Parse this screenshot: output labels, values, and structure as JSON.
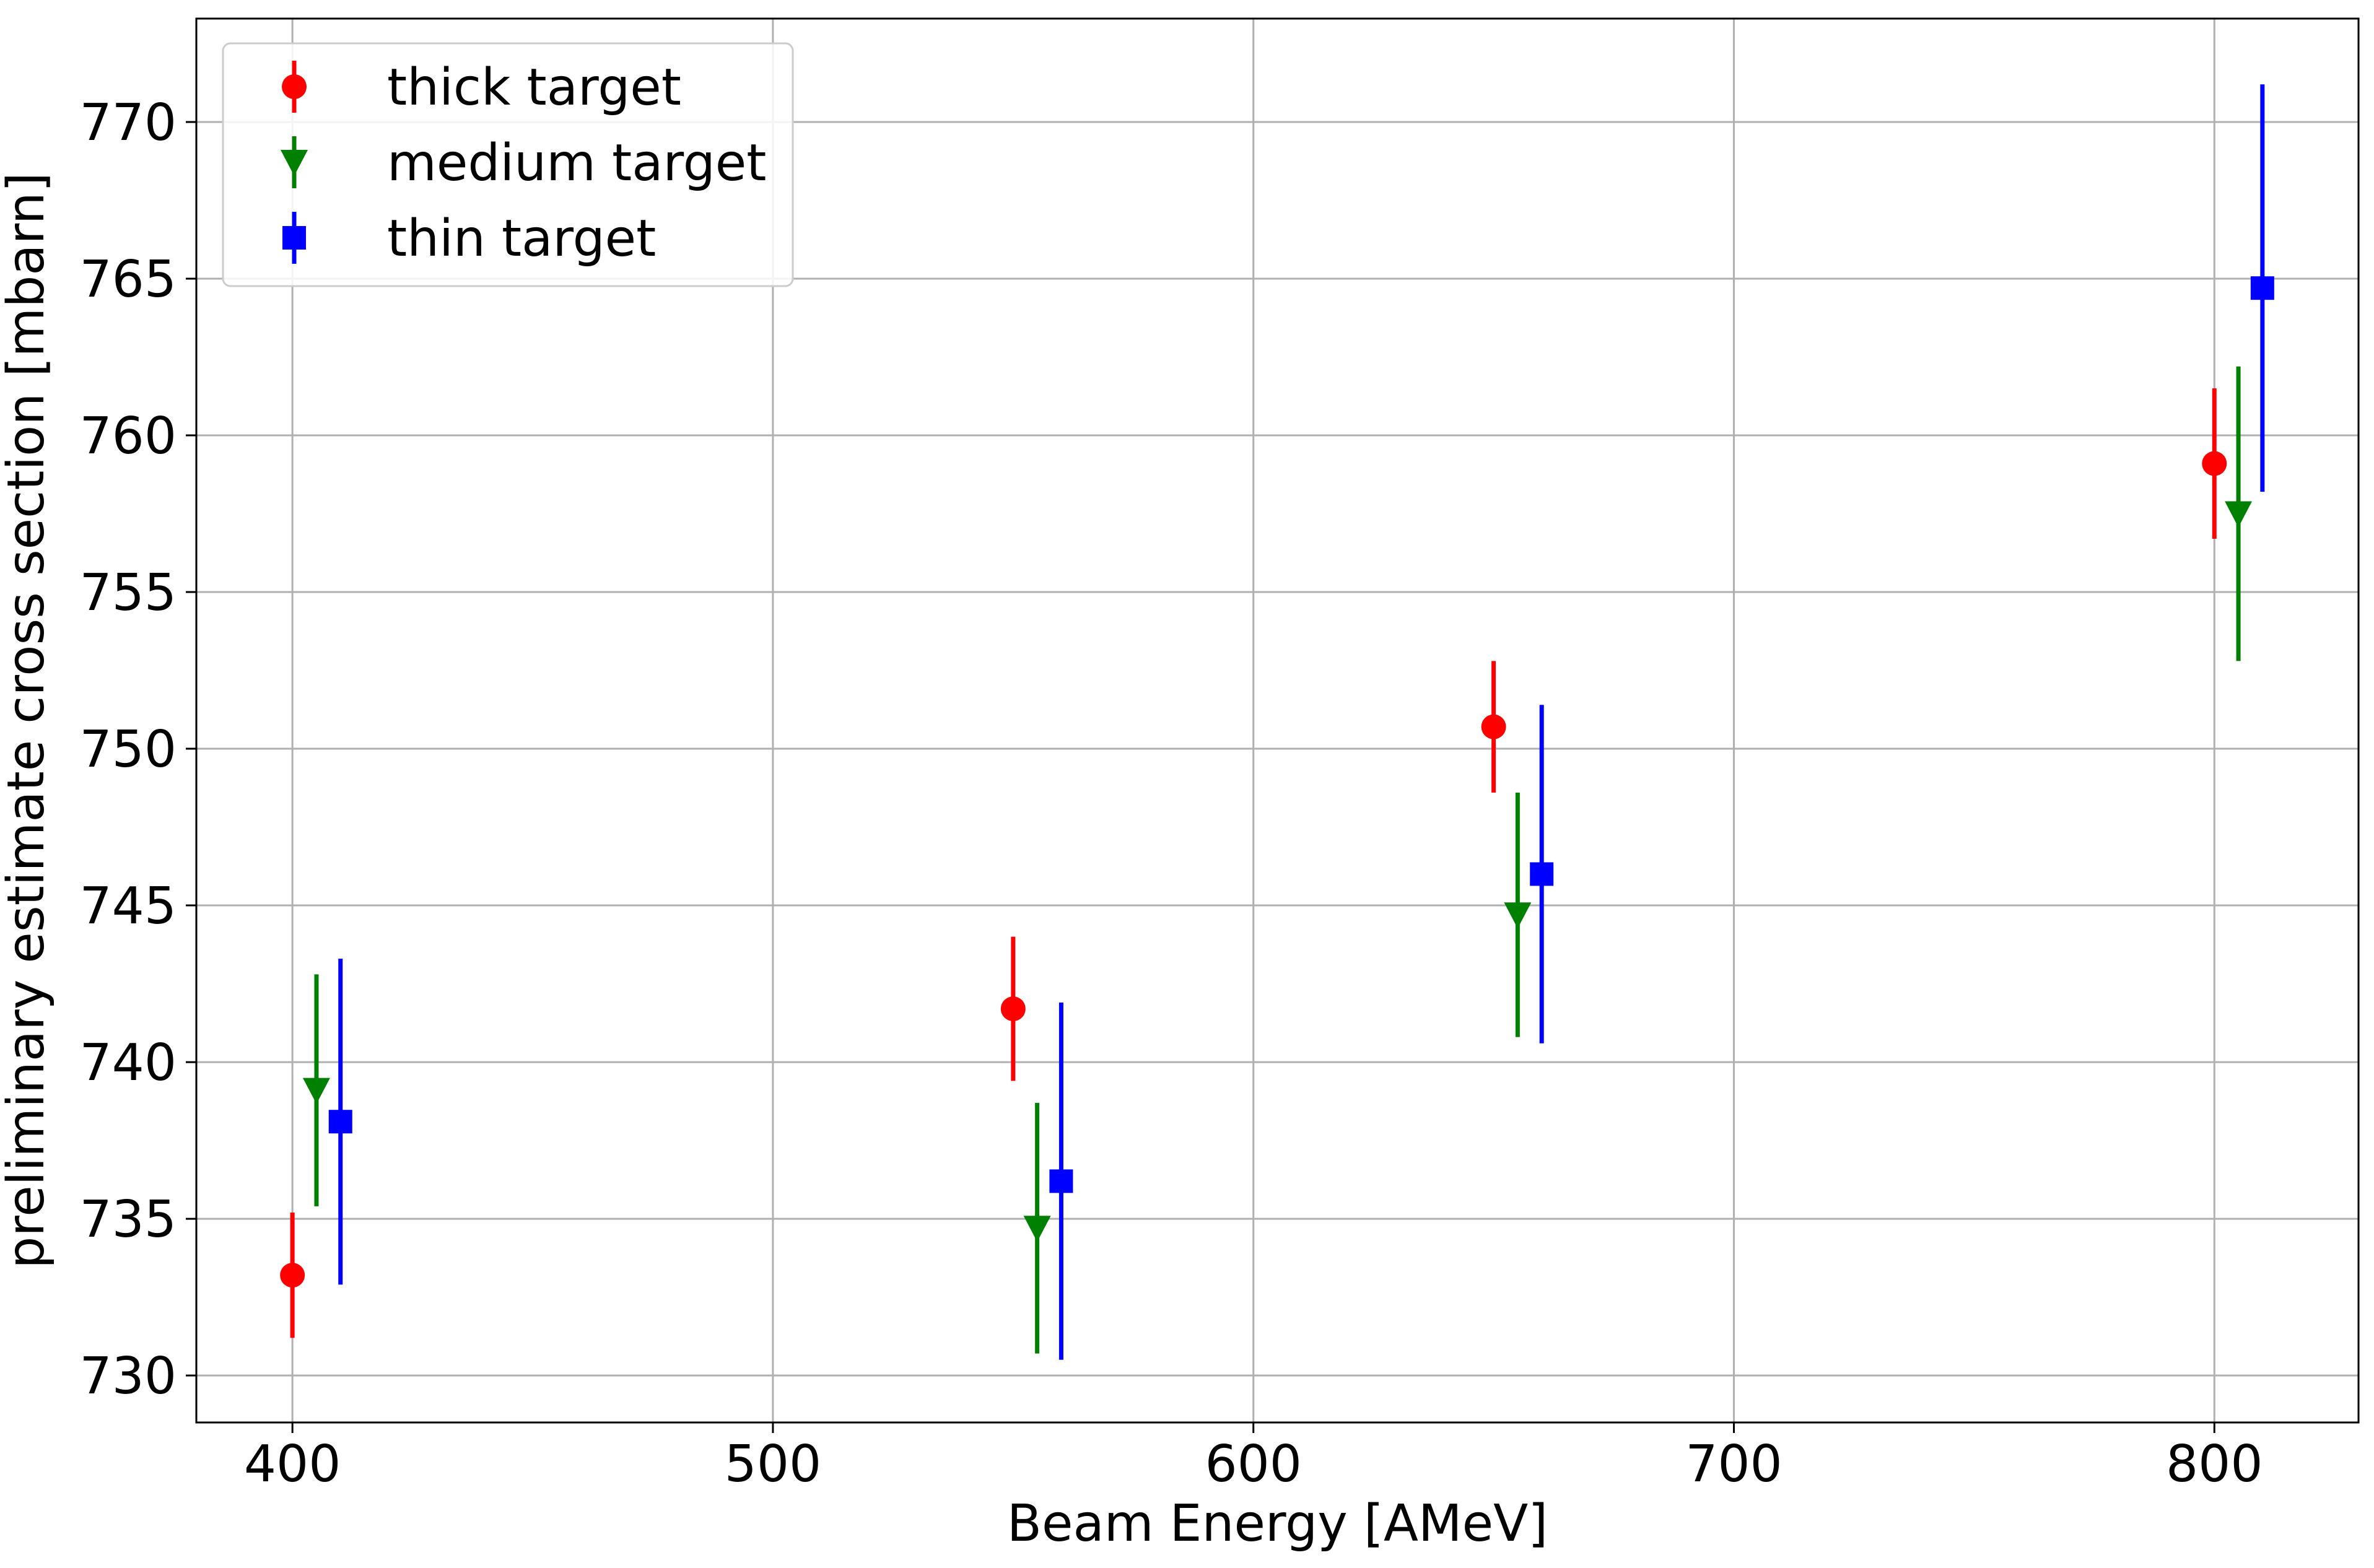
{
  "chart_data": {
    "type": "scatter",
    "title": "",
    "xlabel": "Beam Energy [AMeV]",
    "ylabel": "preliminary estimate cross section [mbarn]",
    "xlim": [
      380,
      830
    ],
    "ylim": [
      728.5,
      773.3
    ],
    "xticks": [
      400,
      500,
      600,
      700,
      800
    ],
    "yticks": [
      730,
      735,
      740,
      745,
      750,
      755,
      760,
      765,
      770
    ],
    "grid": true,
    "legend_position": "top-left",
    "series": [
      {
        "name": "thick target",
        "marker": "circle",
        "color": "#ff0000",
        "points": [
          {
            "x": 400,
            "y": 733.2,
            "yerr": 2.0
          },
          {
            "x": 550,
            "y": 741.7,
            "yerr": 2.3
          },
          {
            "x": 650,
            "y": 750.7,
            "yerr": 2.1
          },
          {
            "x": 800,
            "y": 759.1,
            "yerr": 2.4
          }
        ]
      },
      {
        "name": "medium target",
        "marker": "triangle-down",
        "color": "#008000",
        "points": [
          {
            "x": 405,
            "y": 739.1,
            "yerr": 3.7
          },
          {
            "x": 555,
            "y": 734.7,
            "yerr": 4.0
          },
          {
            "x": 655,
            "y": 744.7,
            "yerr": 3.9
          },
          {
            "x": 805,
            "y": 757.5,
            "yerr": 4.7
          }
        ]
      },
      {
        "name": "thin target",
        "marker": "square",
        "color": "#0000ff",
        "points": [
          {
            "x": 410,
            "y": 738.1,
            "yerr": 5.2
          },
          {
            "x": 560,
            "y": 736.2,
            "yerr": 5.7
          },
          {
            "x": 660,
            "y": 746.0,
            "yerr": 5.4
          },
          {
            "x": 810,
            "y": 764.7,
            "yerr": 6.5
          }
        ]
      }
    ]
  }
}
